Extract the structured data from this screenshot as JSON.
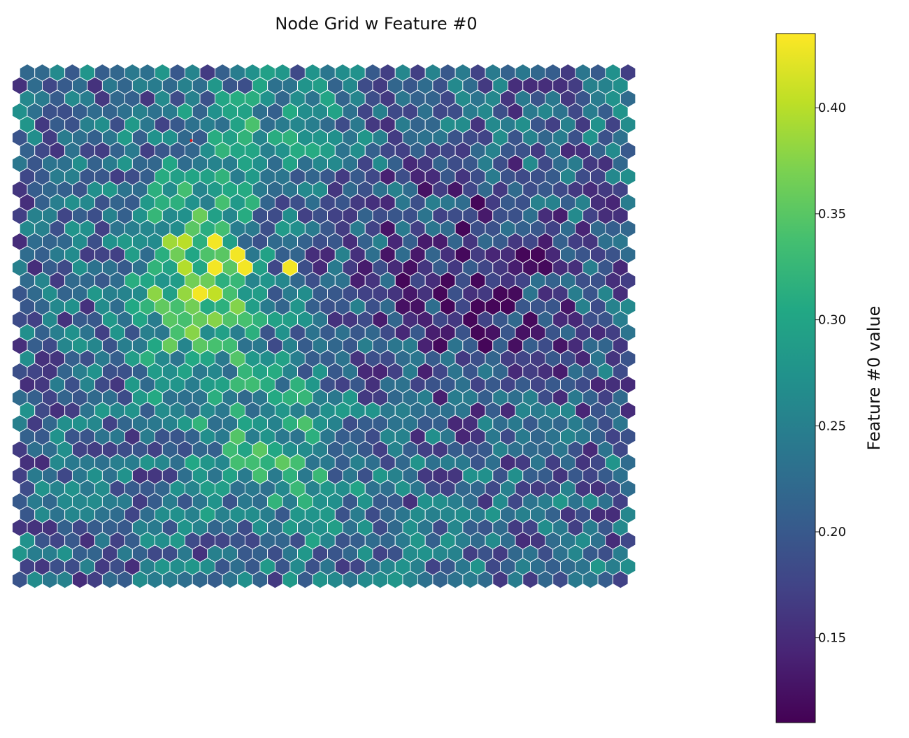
{
  "chart_data": {
    "type": "heatmap",
    "subtype": "hexagonal-grid",
    "title": "Node Grid w Feature #0",
    "grid": {
      "columns": 41,
      "rows": 40,
      "hex_orientation": "pointy-top",
      "odd_rows_offset": "left"
    },
    "colormap": "viridis",
    "colorbar": {
      "label": "Feature #0 value",
      "min": 0.11,
      "max": 0.435,
      "ticks": [
        0.15,
        0.2,
        0.25,
        0.3,
        0.35,
        0.4
      ],
      "tick_labels": [
        "0.15",
        "0.20",
        "0.25",
        "0.30",
        "0.35",
        "0.40"
      ],
      "placement": "right"
    },
    "hotspot": {
      "description": "highest values concentrated around column 11-12, rows 15-18",
      "peak_value": 0.43
    },
    "marker": {
      "column": 11,
      "row": 5,
      "color": "#e41a1c"
    },
    "gridline_color": "#ffffff"
  }
}
